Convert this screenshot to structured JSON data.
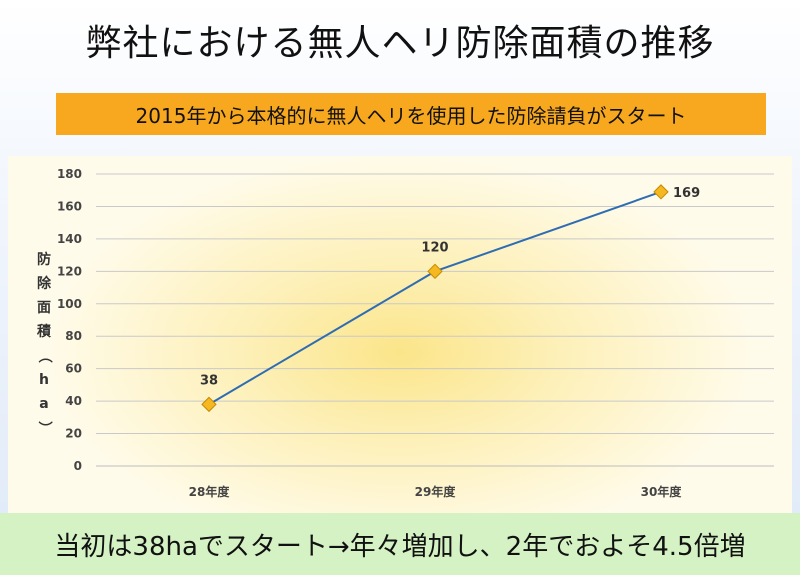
{
  "title": "弊社における無人ヘリ防除面積の推移",
  "banner": "2015年から本格的に無人ヘリを使用した防除請負がスタート",
  "footer": "当初は38haでスタート→年々増加し、2年でおよそ4.5倍増",
  "colors": {
    "banner": "#f7a81e",
    "footer_bg": "#d5f2c4",
    "line": "#2e6db3",
    "marker": "#f5b820"
  },
  "chart_data": {
    "type": "line",
    "categories": [
      "28年度",
      "29年度",
      "30年度"
    ],
    "series": [
      {
        "values": [
          38,
          120,
          169
        ]
      }
    ],
    "data_labels": [
      "38",
      "120",
      "169"
    ],
    "ylabel": "防除面積（ha）",
    "ylim": [
      0,
      180
    ],
    "yticks": [
      0,
      20,
      40,
      60,
      80,
      100,
      120,
      140,
      160,
      180
    ],
    "grid": true,
    "legend": "none"
  }
}
